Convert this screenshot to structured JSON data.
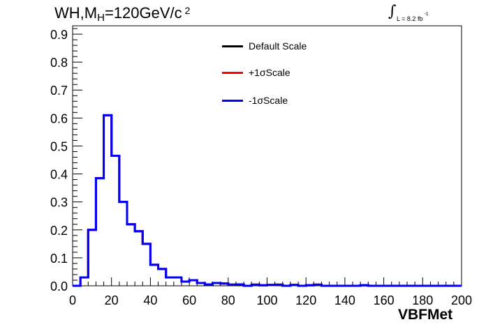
{
  "chart_data": {
    "type": "line",
    "drawstyle": "step",
    "title": "WH,M",
    "title_sub": "H",
    "title_rest": "=120GeV/c",
    "title_sup": "2",
    "lumi_text": "L = 8.2 fb",
    "lumi_sup": "-1",
    "xlabel": "VBFMet",
    "ylabel": "",
    "xlim": [
      0,
      200
    ],
    "ylim": [
      0,
      0.93
    ],
    "x_ticks": [
      "0",
      "20",
      "40",
      "60",
      "80",
      "100",
      "120",
      "140",
      "160",
      "180",
      "200"
    ],
    "y_ticks": [
      "0.0",
      "0.1",
      "0.2",
      "0.3",
      "0.4",
      "0.5",
      "0.6",
      "0.7",
      "0.8",
      "0.9"
    ],
    "bin_edges": [
      0,
      4,
      8,
      12,
      16,
      20,
      24,
      28,
      32,
      36,
      40,
      44,
      48,
      52,
      56,
      60,
      64,
      68,
      72,
      76,
      80,
      84,
      88,
      92,
      96,
      100,
      104,
      108,
      112,
      116,
      120,
      124,
      128,
      132,
      136,
      140,
      144,
      148,
      152,
      156,
      160,
      164,
      168,
      172,
      176,
      180,
      184,
      188,
      192,
      196,
      200
    ],
    "legend": [
      {
        "name": "Default Scale",
        "color": "#000000"
      },
      {
        "name": "+1σScale",
        "color": "#ff0000"
      },
      {
        "name": "-1σScale",
        "color": "#0000ff"
      }
    ],
    "series": [
      {
        "name": "Default Scale",
        "color": "#000000",
        "values": [
          0,
          0.03,
          0.2,
          0.385,
          0.61,
          0.465,
          0.3,
          0.22,
          0.195,
          0.15,
          0.075,
          0.06,
          0.03,
          0.03,
          0.015,
          0.02,
          0.01,
          0.005,
          0.01,
          0.008,
          0.004,
          0.005,
          0,
          0.004,
          0.002,
          0.003,
          0.004,
          0,
          0.003,
          0,
          0.002,
          0.004,
          0,
          0,
          0,
          0,
          0,
          0.002,
          0,
          0,
          0,
          0,
          0,
          0,
          0,
          0,
          0,
          0,
          0,
          0
        ]
      },
      {
        "name": "+1σScale",
        "color": "#ff0000",
        "values": [
          0,
          0.03,
          0.2,
          0.385,
          0.61,
          0.465,
          0.3,
          0.22,
          0.195,
          0.15,
          0.075,
          0.06,
          0.03,
          0.03,
          0.015,
          0.02,
          0.01,
          0.005,
          0.01,
          0.008,
          0.004,
          0.005,
          0,
          0.004,
          0.002,
          0.003,
          0.004,
          0,
          0.003,
          0,
          0.002,
          0.004,
          0,
          0,
          0,
          0,
          0,
          0.002,
          0,
          0,
          0,
          0,
          0,
          0,
          0,
          0,
          0,
          0,
          0,
          0
        ]
      },
      {
        "name": "-1σScale",
        "color": "#0000ff",
        "values": [
          0,
          0.03,
          0.2,
          0.385,
          0.61,
          0.465,
          0.3,
          0.22,
          0.195,
          0.15,
          0.075,
          0.06,
          0.03,
          0.03,
          0.015,
          0.02,
          0.01,
          0.005,
          0.01,
          0.008,
          0.004,
          0.005,
          0,
          0.004,
          0.002,
          0.003,
          0.004,
          0,
          0.003,
          0,
          0.002,
          0.004,
          0,
          0,
          0,
          0,
          0,
          0.002,
          0,
          0,
          0,
          0,
          0,
          0,
          0,
          0,
          0,
          0,
          0,
          0
        ]
      }
    ]
  }
}
